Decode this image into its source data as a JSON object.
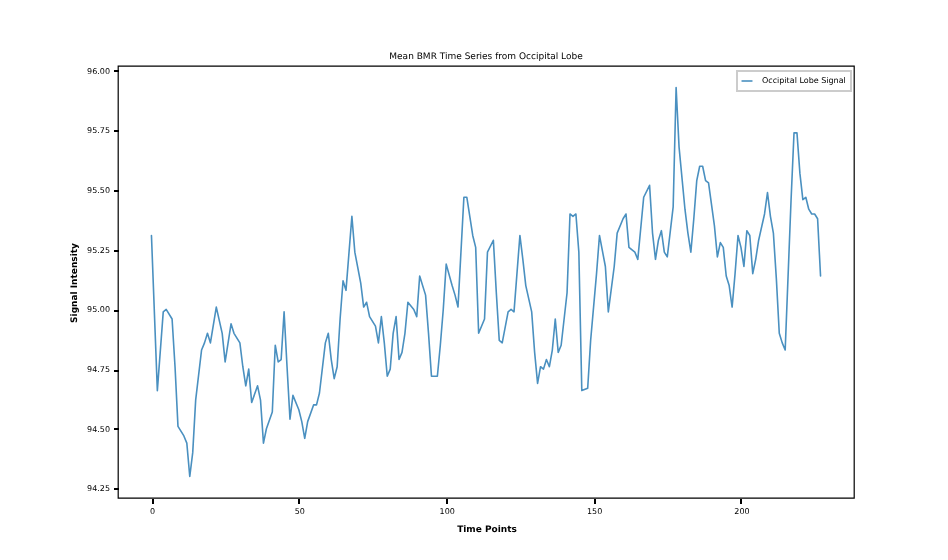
{
  "chart_data": {
    "type": "line",
    "title": "Mean BMR Time Series from Occipital Lobe",
    "xlabel": "Time Points",
    "ylabel": "Signal Intensity",
    "legend": "top right",
    "grid": false,
    "xlim": [
      -11.35,
      238.35
    ],
    "xticks": [
      0,
      50,
      100,
      150,
      200
    ],
    "ylim": [
      94.21,
      96.02
    ],
    "yticks": [
      {
        "value": 94.25,
        "label": "94.25"
      },
      {
        "value": 94.5,
        "label": "94.50"
      },
      {
        "value": 94.75,
        "label": "94.75"
      },
      {
        "value": 95,
        "label": "95.00"
      },
      {
        "value": 95.25,
        "label": "95.25"
      },
      {
        "value": 95.5,
        "label": "95.50"
      },
      {
        "value": 95.75,
        "label": "95.75"
      },
      {
        "value": 96,
        "label": "96.00"
      }
    ],
    "x": [
      0,
      2,
      4,
      5,
      7,
      8,
      9,
      11,
      12,
      13,
      14,
      15,
      17,
      18,
      19,
      20,
      22,
      24,
      25,
      27,
      28,
      30,
      31,
      32,
      33,
      34,
      36,
      37,
      38,
      39,
      41,
      42,
      43,
      44,
      45,
      46,
      47,
      48,
      50,
      51,
      52,
      53,
      55,
      56,
      57,
      59,
      60,
      61,
      62,
      63,
      64,
      65,
      66,
      68,
      69,
      71,
      72,
      73,
      74,
      76,
      77,
      78,
      79,
      80,
      81,
      82,
      83,
      84,
      85,
      86,
      87,
      89,
      90,
      91,
      93,
      94,
      95,
      97,
      98,
      99,
      100,
      102,
      103,
      104,
      106,
      107,
      109,
      110,
      111,
      113,
      114,
      116,
      117,
      118,
      119,
      121,
      122,
      123,
      125,
      126,
      127,
      129,
      130,
      131,
      132,
      133,
      134,
      135,
      136,
      137,
      138,
      139,
      141,
      142,
      143,
      144,
      145,
      146,
      148,
      149,
      151,
      152,
      154,
      155,
      157,
      158,
      160,
      161,
      162,
      164,
      165,
      167,
      169,
      170,
      171,
      172,
      173,
      174,
      175,
      177,
      178,
      179,
      181,
      182,
      183,
      184,
      185,
      186,
      187,
      188,
      189,
      191,
      192,
      193,
      194,
      195,
      196,
      197,
      198,
      199,
      200,
      201,
      202,
      203,
      204,
      205,
      206,
      208,
      209,
      210,
      211,
      212,
      213,
      214,
      215,
      217,
      218,
      219,
      220,
      221,
      222,
      223,
      224,
      225,
      226,
      227
    ],
    "series": [
      {
        "name": "Occipital Lobe Signal",
        "color": "#4a90c0",
        "values": [
          95.31,
          94.66,
          94.99,
          95.0,
          94.96,
          94.76,
          94.51,
          94.47,
          94.44,
          94.3,
          94.4,
          94.62,
          94.83,
          94.86,
          94.9,
          94.86,
          95.01,
          94.9,
          94.78,
          94.94,
          94.9,
          94.86,
          94.76,
          94.68,
          94.75,
          94.61,
          94.68,
          94.62,
          94.44,
          94.5,
          94.57,
          94.85,
          94.78,
          94.79,
          94.99,
          94.76,
          94.54,
          94.64,
          94.58,
          94.53,
          94.46,
          94.53,
          94.6,
          94.6,
          94.65,
          94.86,
          94.9,
          94.79,
          94.71,
          94.76,
          94.96,
          95.12,
          95.08,
          95.39,
          95.24,
          95.11,
          95.01,
          95.03,
          94.97,
          94.93,
          94.86,
          94.97,
          94.86,
          94.72,
          94.75,
          94.9,
          94.97,
          94.79,
          94.82,
          94.9,
          95.03,
          95.0,
          94.97,
          95.14,
          95.06,
          94.9,
          94.72,
          94.72,
          94.85,
          95.0,
          95.19,
          95.1,
          95.06,
          95.01,
          95.47,
          95.47,
          95.31,
          95.26,
          94.9,
          94.96,
          95.24,
          95.29,
          95.07,
          94.87,
          94.86,
          94.99,
          95.0,
          94.99,
          95.31,
          95.21,
          95.1,
          94.99,
          94.82,
          94.69,
          94.76,
          94.75,
          94.79,
          94.76,
          94.83,
          94.96,
          94.82,
          94.85,
          95.07,
          95.4,
          95.39,
          95.4,
          95.24,
          94.66,
          94.67,
          94.87,
          95.15,
          95.31,
          95.18,
          94.99,
          95.18,
          95.32,
          95.38,
          95.4,
          95.26,
          95.24,
          95.21,
          95.47,
          95.52,
          95.32,
          95.21,
          95.29,
          95.33,
          95.24,
          95.22,
          95.43,
          95.93,
          95.68,
          95.42,
          95.32,
          95.24,
          95.38,
          95.54,
          95.6,
          95.6,
          95.54,
          95.53,
          95.35,
          95.22,
          95.28,
          95.26,
          95.14,
          95.1,
          95.01,
          95.15,
          95.31,
          95.26,
          95.18,
          95.33,
          95.31,
          95.15,
          95.21,
          95.29,
          95.4,
          95.49,
          95.39,
          95.32,
          95.13,
          94.9,
          94.86,
          94.83,
          95.46,
          95.74,
          95.74,
          95.57,
          95.46,
          95.47,
          95.42,
          95.4,
          95.4,
          95.38,
          95.14
        ]
      }
    ]
  }
}
